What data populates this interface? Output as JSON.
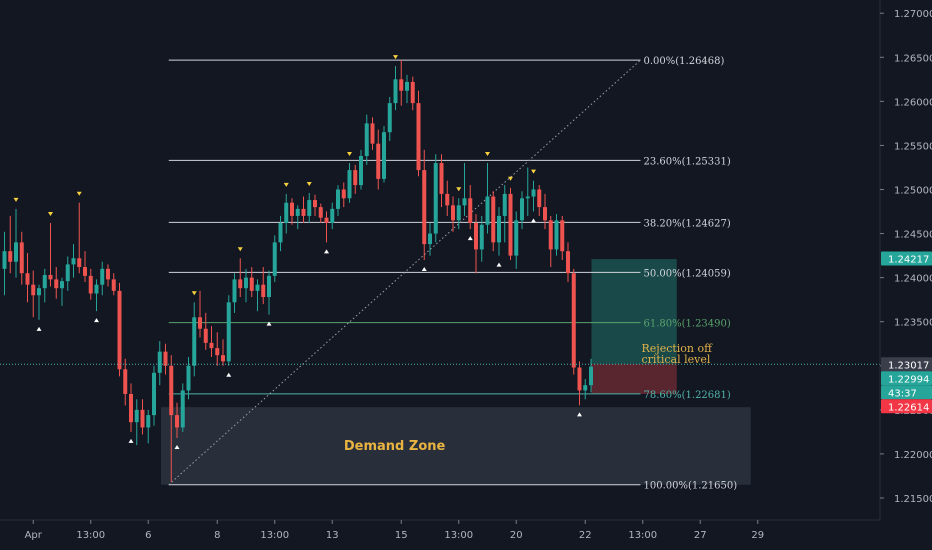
{
  "chart_data": {
    "type": "candlestick",
    "y_axis": {
      "range": [
        1.2125,
        1.2715
      ],
      "ticks": [
        "1.27000",
        "1.26500",
        "1.26000",
        "1.25500",
        "1.25000",
        "1.24500",
        "1.24000",
        "1.23500",
        "1.23000",
        "1.22500",
        "1.22000",
        "1.21500"
      ],
      "tick_values": [
        1.27,
        1.265,
        1.26,
        1.255,
        1.25,
        1.245,
        1.24,
        1.235,
        1.23,
        1.225,
        1.22,
        1.215
      ]
    },
    "x_axis": {
      "ticks": [
        "Apr",
        "13:00",
        "6",
        "8",
        "13:00",
        "13",
        "15",
        "13:00",
        "20",
        "22",
        "13:00",
        "27",
        "29"
      ],
      "tick_bar_index": [
        5,
        15,
        25,
        37,
        47,
        57,
        69,
        79,
        89,
        101,
        111,
        121,
        131
      ]
    },
    "fib_levels": [
      {
        "label": "0.00%(1.26468)",
        "value": 1.26468,
        "color": "#d1d4dc"
      },
      {
        "label": "23.60%(1.25331)",
        "value": 1.25331,
        "color": "#d1d4dc"
      },
      {
        "label": "38.20%(1.24627)",
        "value": 1.24627,
        "color": "#d1d4dc"
      },
      {
        "label": "50.00%(1.24059)",
        "value": 1.24059,
        "color": "#d1d4dc"
      },
      {
        "label": "61.80%(1.23490)",
        "value": 1.2349,
        "color": "#5aa36c"
      },
      {
        "label": "78.60%(1.22681)",
        "value": 1.22681,
        "color": "#4fb3a9"
      },
      {
        "label": "100.00%(1.21650)",
        "value": 1.2165,
        "color": "#d1d4dc"
      }
    ],
    "fib_range_bars": [
      29,
      110
    ],
    "demand_zone": {
      "label": "Demand Zone",
      "bar_range": [
        28,
        129
      ],
      "price_range": [
        1.2165,
        1.2253
      ]
    },
    "position_box": {
      "bar_range": [
        102,
        109
      ],
      "entry": 1.2302,
      "target": 1.2421,
      "stop": 1.2268
    },
    "annotation": {
      "lines": [
        "Rejection off",
        "critical level"
      ]
    },
    "price_badges": [
      {
        "text": "1.24217",
        "value": 1.24217,
        "color": "#26a69a"
      },
      {
        "text": "1.23017",
        "value": 1.23017,
        "color": "#3a3e4b"
      },
      {
        "text": "1.22994",
        "value": 1.22994,
        "color": "#26a69a"
      },
      {
        "text": "43:37",
        "value": 1.22788,
        "color": "#26a69a"
      },
      {
        "text": "1.22614",
        "value": 1.22614,
        "color": "#f23645"
      }
    ],
    "current_price_line": 1.23017,
    "colors": {
      "up": "#26a69a",
      "down": "#ef5350",
      "swing_high": "#f7d23e",
      "swing_low": "#ffffff",
      "background": "#131722"
    },
    "swing_highs": [
      2,
      8,
      13,
      33,
      41,
      49,
      53,
      60,
      68,
      79,
      84,
      88,
      92
    ],
    "swing_lows": [
      6,
      16,
      22,
      30,
      39,
      46,
      56,
      73,
      81,
      86,
      92,
      100
    ],
    "bars": [
      [
        1.241,
        1.2452,
        1.238,
        1.243
      ],
      [
        1.243,
        1.247,
        1.2405,
        1.2418
      ],
      [
        1.2418,
        1.2478,
        1.24,
        1.244
      ],
      [
        1.244,
        1.2452,
        1.2392,
        1.2405
      ],
      [
        1.2405,
        1.2428,
        1.2372,
        1.2392
      ],
      [
        1.2392,
        1.2408,
        1.2355,
        1.238
      ],
      [
        1.238,
        1.2392,
        1.2352,
        1.2388
      ],
      [
        1.2388,
        1.241,
        1.2372,
        1.2403
      ],
      [
        1.2403,
        1.2462,
        1.239,
        1.2398
      ],
      [
        1.2398,
        1.2412,
        1.2376,
        1.2388
      ],
      [
        1.2388,
        1.24,
        1.2368,
        1.2396
      ],
      [
        1.2396,
        1.2424,
        1.2385,
        1.2415
      ],
      [
        1.2415,
        1.2438,
        1.24,
        1.2422
      ],
      [
        1.2422,
        1.2485,
        1.2405,
        1.2412
      ],
      [
        1.2412,
        1.243,
        1.2395,
        1.2402
      ],
      [
        1.2402,
        1.241,
        1.2375,
        1.2382
      ],
      [
        1.2382,
        1.2398,
        1.2362,
        1.2392
      ],
      [
        1.2392,
        1.2418,
        1.238,
        1.241
      ],
      [
        1.241,
        1.2415,
        1.239,
        1.2398
      ],
      [
        1.2398,
        1.2405,
        1.238,
        1.2385
      ],
      [
        1.2385,
        1.2394,
        1.2288,
        1.2296
      ],
      [
        1.2296,
        1.2308,
        1.2255,
        1.2268
      ],
      [
        1.2268,
        1.228,
        1.2225,
        1.2236
      ],
      [
        1.2236,
        1.2262,
        1.221,
        1.225
      ],
      [
        1.225,
        1.2262,
        1.2222,
        1.223
      ],
      [
        1.223,
        1.225,
        1.2212,
        1.2244
      ],
      [
        1.2244,
        1.23,
        1.2232,
        1.2292
      ],
      [
        1.2292,
        1.2328,
        1.2278,
        1.2316
      ],
      [
        1.2316,
        1.2325,
        1.229,
        1.23
      ],
      [
        1.23,
        1.2312,
        1.2168,
        1.2244
      ],
      [
        1.2244,
        1.2258,
        1.2218,
        1.223
      ],
      [
        1.223,
        1.228,
        1.2225,
        1.2272
      ],
      [
        1.2272,
        1.231,
        1.2262,
        1.23
      ],
      [
        1.23,
        1.2372,
        1.2288,
        1.2355
      ],
      [
        1.2355,
        1.2385,
        1.2332,
        1.2342
      ],
      [
        1.2342,
        1.236,
        1.2318,
        1.2326
      ],
      [
        1.2326,
        1.2345,
        1.231,
        1.232
      ],
      [
        1.232,
        1.2338,
        1.23,
        1.2312
      ],
      [
        1.2312,
        1.233,
        1.23,
        1.2305
      ],
      [
        1.2305,
        1.238,
        1.23,
        1.2372
      ],
      [
        1.2372,
        1.2405,
        1.236,
        1.2398
      ],
      [
        1.2398,
        1.2422,
        1.2378,
        1.2388
      ],
      [
        1.2388,
        1.241,
        1.2372,
        1.24
      ],
      [
        1.24,
        1.2412,
        1.2378,
        1.2385
      ],
      [
        1.2385,
        1.2398,
        1.2362,
        1.2392
      ],
      [
        1.2392,
        1.2412,
        1.237,
        1.2378
      ],
      [
        1.2378,
        1.2408,
        1.2358,
        1.2402
      ],
      [
        1.2402,
        1.2448,
        1.2395,
        1.244
      ],
      [
        1.244,
        1.247,
        1.243,
        1.2462
      ],
      [
        1.2462,
        1.2495,
        1.245,
        1.2485
      ],
      [
        1.2485,
        1.249,
        1.246,
        1.247
      ],
      [
        1.247,
        1.2482,
        1.2455,
        1.2478
      ],
      [
        1.2478,
        1.2492,
        1.2462,
        1.247
      ],
      [
        1.247,
        1.2496,
        1.2462,
        1.2488
      ],
      [
        1.2488,
        1.2494,
        1.247,
        1.248
      ],
      [
        1.248,
        1.2484,
        1.2462,
        1.2468
      ],
      [
        1.2468,
        1.2475,
        1.244,
        1.2462
      ],
      [
        1.2462,
        1.2485,
        1.2455,
        1.2478
      ],
      [
        1.2478,
        1.2505,
        1.247,
        1.25
      ],
      [
        1.25,
        1.2508,
        1.248,
        1.249
      ],
      [
        1.249,
        1.253,
        1.2485,
        1.2522
      ],
      [
        1.2522,
        1.2528,
        1.2495,
        1.2505
      ],
      [
        1.2505,
        1.2545,
        1.25,
        1.2538
      ],
      [
        1.2538,
        1.2585,
        1.2528,
        1.2575
      ],
      [
        1.2575,
        1.2582,
        1.2545,
        1.2552
      ],
      [
        1.2552,
        1.2568,
        1.25,
        1.2512
      ],
      [
        1.2512,
        1.2572,
        1.2508,
        1.2565
      ],
      [
        1.2565,
        1.2605,
        1.2555,
        1.2598
      ],
      [
        1.2598,
        1.264,
        1.259,
        1.2625
      ],
      [
        1.2625,
        1.2647,
        1.2595,
        1.2612
      ],
      [
        1.2612,
        1.263,
        1.2598,
        1.2622
      ],
      [
        1.2622,
        1.2628,
        1.259,
        1.2598
      ],
      [
        1.2598,
        1.2612,
        1.2515,
        1.2522
      ],
      [
        1.2522,
        1.2545,
        1.242,
        1.2438
      ],
      [
        1.2438,
        1.2462,
        1.2425,
        1.245
      ],
      [
        1.245,
        1.254,
        1.244,
        1.253
      ],
      [
        1.253,
        1.254,
        1.248,
        1.2495
      ],
      [
        1.2495,
        1.251,
        1.247,
        1.2482
      ],
      [
        1.2482,
        1.2492,
        1.2452,
        1.2465
      ],
      [
        1.2465,
        1.249,
        1.2455,
        1.2482
      ],
      [
        1.2482,
        1.253,
        1.247,
        1.249
      ],
      [
        1.249,
        1.2505,
        1.2455,
        1.2462
      ],
      [
        1.2462,
        1.2472,
        1.2405,
        1.2432
      ],
      [
        1.2432,
        1.247,
        1.2418,
        1.246
      ],
      [
        1.246,
        1.253,
        1.245,
        1.2492
      ],
      [
        1.2492,
        1.2498,
        1.243,
        1.244
      ],
      [
        1.244,
        1.248,
        1.2425,
        1.247
      ],
      [
        1.247,
        1.2505,
        1.244,
        1.2495
      ],
      [
        1.2495,
        1.2502,
        1.242,
        1.2425
      ],
      [
        1.2425,
        1.2475,
        1.241,
        1.2465
      ],
      [
        1.2465,
        1.2498,
        1.2455,
        1.249
      ],
      [
        1.249,
        1.2525,
        1.247,
        1.2492
      ],
      [
        1.2492,
        1.251,
        1.2475,
        1.25
      ],
      [
        1.25,
        1.2505,
        1.247,
        1.248
      ],
      [
        1.248,
        1.2495,
        1.2455,
        1.2465
      ],
      [
        1.2465,
        1.247,
        1.2412,
        1.2432
      ],
      [
        1.2432,
        1.2472,
        1.2425,
        1.2465
      ],
      [
        1.2465,
        1.247,
        1.242,
        1.243
      ],
      [
        1.243,
        1.244,
        1.2395,
        1.2405
      ],
      [
        1.2405,
        1.241,
        1.229,
        1.2298
      ],
      [
        1.2298,
        1.2305,
        1.2255,
        1.2272
      ],
      [
        1.2272,
        1.2285,
        1.2262,
        1.2278
      ],
      [
        1.2278,
        1.2308,
        1.227,
        1.2299
      ]
    ]
  }
}
